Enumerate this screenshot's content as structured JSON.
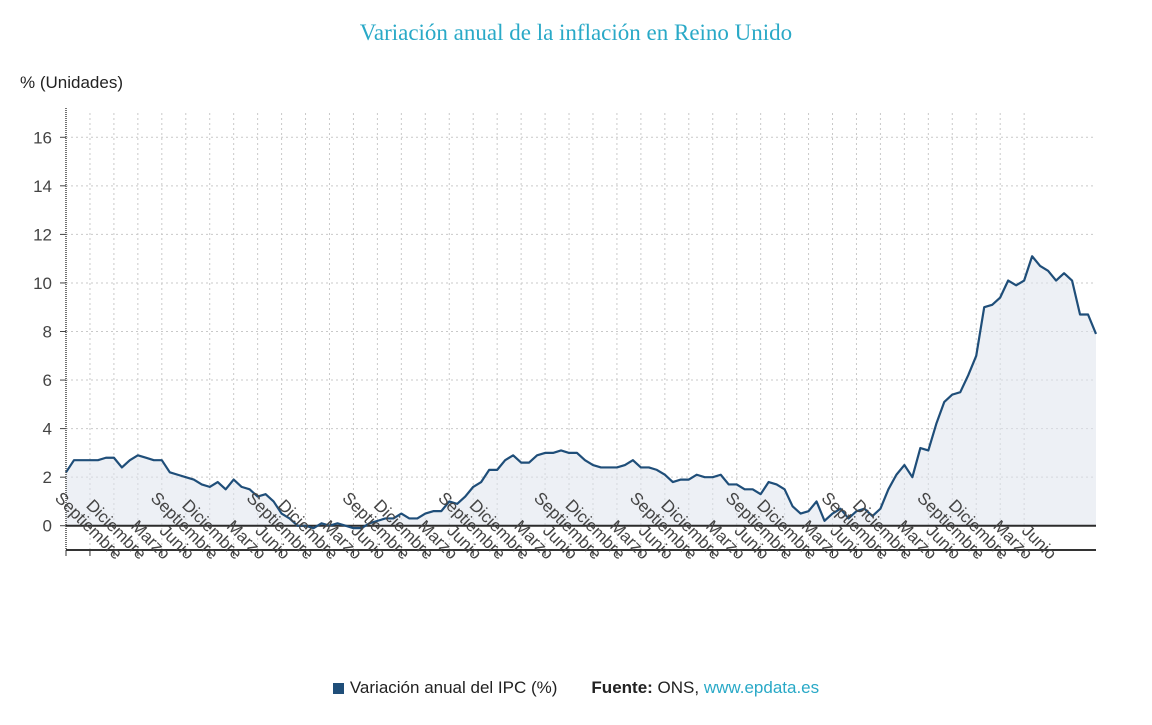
{
  "chart_data": {
    "type": "area",
    "title": "Variación anual de la inflación en Reino Unido",
    "ylabel": "% (Unidades)",
    "xlabel": "",
    "ylim": [
      -1,
      17
    ],
    "yticks": [
      0,
      2,
      4,
      6,
      8,
      10,
      12,
      14,
      16
    ],
    "grid": true,
    "legend_position": "bottom",
    "x_start": "2013-06",
    "x_end": "2023-06",
    "x_tick_labels": [
      "Septiembre",
      "Diciembre",
      "Marzo",
      "Junio",
      "Septiembre",
      "Diciembre",
      "Marzo",
      "Junio",
      "Septiembre",
      "Diciembre",
      "Marzo",
      "Junio",
      "Septiembre",
      "Diciembre",
      "Marzo",
      "Junio",
      "Septiembre",
      "Diciembre",
      "Marzo",
      "Junio",
      "Septiembre",
      "Diciembre",
      "Marzo",
      "Junio",
      "Septiembre",
      "Diciembre",
      "Marzo",
      "Junio",
      "Septiembre",
      "Diciembre",
      "Marzo",
      "Junio",
      "Septiembre",
      "Diciembre",
      "Marzo",
      "Junio",
      "Septiembre",
      "Diciembre",
      "Marzo",
      "Junio"
    ],
    "series": [
      {
        "name": "Variación anual del IPC (%)",
        "color": "#1f4e79",
        "values": [
          2.2,
          2.7,
          2.7,
          2.7,
          2.7,
          2.8,
          2.8,
          2.4,
          2.7,
          2.9,
          2.8,
          2.7,
          2.7,
          2.2,
          2.1,
          2.0,
          1.9,
          1.7,
          1.6,
          1.8,
          1.5,
          1.9,
          1.6,
          1.5,
          1.2,
          1.3,
          1.0,
          0.5,
          0.3,
          0.0,
          0.0,
          -0.1,
          0.1,
          0.0,
          0.1,
          0.0,
          -0.1,
          -0.1,
          0.1,
          0.2,
          0.3,
          0.3,
          0.5,
          0.3,
          0.3,
          0.5,
          0.6,
          0.6,
          1.0,
          0.9,
          1.2,
          1.6,
          1.8,
          2.3,
          2.3,
          2.7,
          2.9,
          2.6,
          2.6,
          2.9,
          3.0,
          3.0,
          3.1,
          3.0,
          3.0,
          2.7,
          2.5,
          2.4,
          2.4,
          2.4,
          2.5,
          2.7,
          2.4,
          2.4,
          2.3,
          2.1,
          1.8,
          1.9,
          1.9,
          2.1,
          2.0,
          2.0,
          2.1,
          1.7,
          1.7,
          1.5,
          1.5,
          1.3,
          1.8,
          1.7,
          1.5,
          0.8,
          0.5,
          0.6,
          1.0,
          0.2,
          0.5,
          0.7,
          0.3,
          0.6,
          0.7,
          0.4,
          0.7,
          1.5,
          2.1,
          2.5,
          2.0,
          3.2,
          3.1,
          4.2,
          5.1,
          5.4,
          5.5,
          6.2,
          7.0,
          9.0,
          9.1,
          9.4,
          10.1,
          9.9,
          10.1,
          11.1,
          10.7,
          10.5,
          10.1,
          10.4,
          10.1,
          8.7,
          8.7,
          7.9
        ]
      }
    ]
  },
  "legend": {
    "series_label": "Variación anual del IPC (%)",
    "source_label": "Fuente:",
    "source_value": "ONS,",
    "source_link": "www.epdata.es"
  }
}
